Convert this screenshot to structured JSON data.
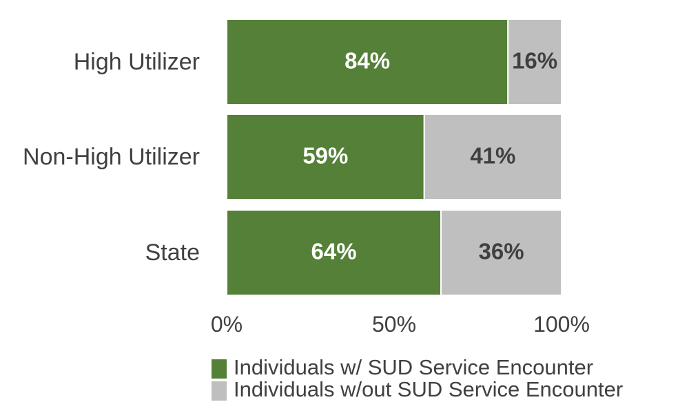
{
  "chart_data": {
    "type": "bar",
    "orientation": "horizontal",
    "stacked": true,
    "categories": [
      "High Utilizer",
      "Non-High Utilizer",
      "State"
    ],
    "series": [
      {
        "name": "Individuals w/ SUD Service Encounter",
        "color": "#548038",
        "label_color": "#ffffff",
        "values": [
          84,
          59,
          64
        ],
        "labels": [
          "84%",
          "59%",
          "64%"
        ]
      },
      {
        "name": "Individuals w/out SUD Service Encounter",
        "color": "#bfbfbf",
        "label_color": "#404040",
        "values": [
          16,
          41,
          36
        ],
        "labels": [
          "16%",
          "41%",
          "36%"
        ]
      }
    ],
    "xlim": [
      0,
      100
    ],
    "x_ticks": [
      0,
      50,
      100
    ],
    "x_tick_labels": [
      "0%",
      "50%",
      "100%"
    ],
    "grid": false,
    "legend_position": "bottom"
  }
}
